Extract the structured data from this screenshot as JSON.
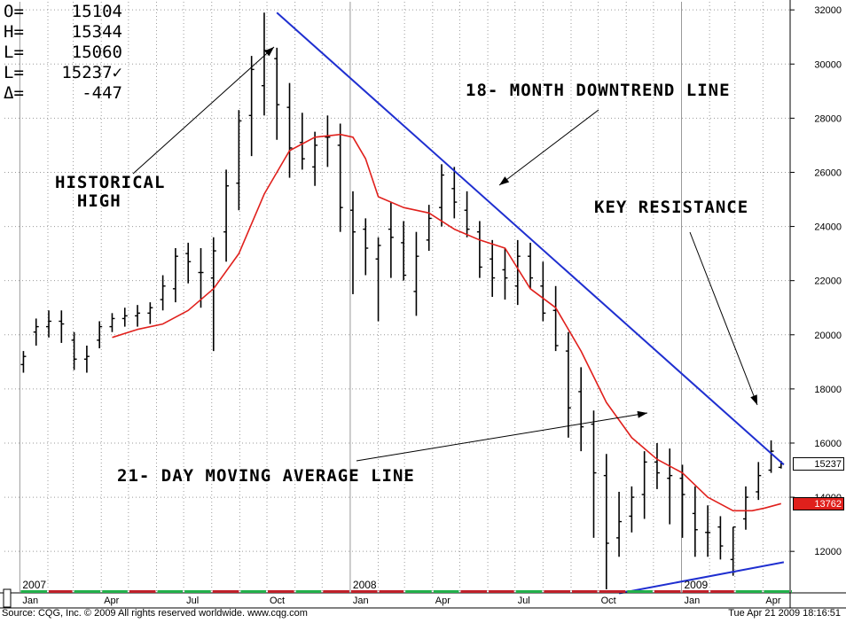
{
  "ohlc": [
    {
      "key": "O=",
      "value": "15104"
    },
    {
      "key": "H=",
      "value": "15344"
    },
    {
      "key": "L=",
      "value": "15060"
    },
    {
      "key": "L=",
      "value": "15237✓"
    },
    {
      "key": "Δ=",
      "value": "-447"
    }
  ],
  "annotations": {
    "historical_high": "HISTORICAL\n  HIGH",
    "downtrend": "18- MONTH DOWNTREND LINE",
    "key_resistance": "KEY RESISTANCE",
    "moving_average": "21- DAY MOVING AVERAGE LINE"
  },
  "footer": {
    "source": "Source: CQG, Inc. © 2009 All rights reserved worldwide. www.cqg.com",
    "timestamp": "Tue Apr 21 2009 18:16:51"
  },
  "price_tags": {
    "last": {
      "label": "15237",
      "value": 15237,
      "color": "#000000",
      "bg": "#ffffff"
    },
    "ma": {
      "label": "13762",
      "value": 13762,
      "color": "#ffffff",
      "bg": "#e0201c"
    }
  },
  "colors": {
    "bars": "#000000",
    "moving_average": "#e0201c",
    "trendline": "#1f2fd0",
    "grid": "#9a9a9a",
    "month_up": "#22b04b",
    "month_down": "#c0202a"
  },
  "chart_data": {
    "type": "line",
    "ylim": [
      10500,
      32300
    ],
    "y_ticks": [
      12000,
      14000,
      16000,
      18000,
      20000,
      22000,
      24000,
      26000,
      28000,
      30000,
      32000
    ],
    "x_month_labels": [
      "Jan",
      "Apr",
      "Jul",
      "Oct",
      "Jan",
      "Apr",
      "Jul",
      "Oct",
      "Jan",
      "Apr"
    ],
    "x_year_labels": [
      "2007",
      "2008",
      "2009"
    ],
    "grid": true,
    "series": [
      {
        "kind": "ohlc",
        "x": [
          "2007-01-05",
          "2007-01-19",
          "2007-02-02",
          "2007-02-16",
          "2007-03-02",
          "2007-03-16",
          "2007-03-30",
          "2007-04-13",
          "2007-04-27",
          "2007-05-11",
          "2007-05-25",
          "2007-06-08",
          "2007-06-22",
          "2007-07-06",
          "2007-07-20",
          "2007-08-03",
          "2007-08-17",
          "2007-08-31",
          "2007-09-14",
          "2007-09-28",
          "2007-10-12",
          "2007-10-26",
          "2007-11-09",
          "2007-11-23",
          "2007-12-07",
          "2007-12-21",
          "2008-01-04",
          "2008-01-18",
          "2008-02-01",
          "2008-02-15",
          "2008-02-29",
          "2008-03-14",
          "2008-03-28",
          "2008-04-11",
          "2008-04-25",
          "2008-05-09",
          "2008-05-23",
          "2008-06-06",
          "2008-06-20",
          "2008-07-04",
          "2008-07-18",
          "2008-08-01",
          "2008-08-15",
          "2008-08-29",
          "2008-09-12",
          "2008-09-26",
          "2008-10-10",
          "2008-10-24",
          "2008-11-07",
          "2008-11-21",
          "2008-12-05",
          "2008-12-19",
          "2009-01-02",
          "2009-01-16",
          "2009-01-30",
          "2009-02-13",
          "2009-02-27",
          "2009-03-13",
          "2009-03-27",
          "2009-04-10",
          "2009-04-21"
        ],
        "open": [
          18900,
          20100,
          20300,
          20500,
          19800,
          19100,
          19800,
          20300,
          20600,
          20700,
          20800,
          21300,
          21700,
          23000,
          22300,
          22100,
          23800,
          25600,
          28100,
          29200,
          30200,
          28400,
          27100,
          26200,
          27300,
          27000,
          24600,
          23900,
          22800,
          23900,
          23400,
          21600,
          23500,
          24700,
          25400,
          24600,
          23800,
          22800,
          22400,
          21800,
          22900,
          21800,
          20900,
          19400,
          17900,
          16700,
          14800,
          12500,
          13300,
          14100,
          15300,
          14700,
          14700,
          13400,
          12700,
          12900,
          11700,
          13200,
          14200,
          15000,
          15104
        ],
        "high": [
          19400,
          20600,
          20900,
          20900,
          20100,
          19600,
          20500,
          20800,
          21000,
          21100,
          21200,
          22200,
          23200,
          23400,
          23200,
          23600,
          26100,
          28300,
          30300,
          31900,
          30600,
          29300,
          28200,
          27500,
          28100,
          27800,
          25300,
          24300,
          23600,
          24900,
          24200,
          23800,
          24800,
          26300,
          26200,
          25300,
          24200,
          23500,
          23200,
          23500,
          23400,
          22700,
          21800,
          20100,
          18800,
          17200,
          15600,
          14200,
          14400,
          15700,
          16000,
          15800,
          15200,
          14400,
          13700,
          13300,
          12900,
          14400,
          15300,
          16100,
          15344
        ],
        "low": [
          18600,
          19600,
          19900,
          19700,
          18700,
          18600,
          19500,
          20100,
          20300,
          20300,
          20400,
          20900,
          21200,
          21900,
          21000,
          19400,
          22700,
          24600,
          26600,
          28100,
          27200,
          25800,
          26100,
          25500,
          26200,
          23800,
          21500,
          22200,
          20500,
          22100,
          22000,
          20700,
          23100,
          24000,
          24300,
          23600,
          22100,
          21400,
          21300,
          21100,
          21700,
          20500,
          19400,
          16200,
          15700,
          12500,
          10600,
          11800,
          12700,
          13200,
          14300,
          13000,
          12500,
          11800,
          11800,
          11700,
          11100,
          12800,
          13900,
          14900,
          15060
        ],
        "close": [
          19200,
          20300,
          20500,
          20400,
          19100,
          19200,
          20300,
          20600,
          20700,
          20800,
          21000,
          21800,
          22900,
          22700,
          22300,
          23100,
          25500,
          27900,
          29800,
          30500,
          28500,
          26900,
          26500,
          27000,
          27300,
          24700,
          23800,
          23200,
          23300,
          23600,
          22200,
          22900,
          24300,
          25900,
          24900,
          23900,
          22500,
          22100,
          22100,
          22900,
          22100,
          20800,
          19600,
          17300,
          16600,
          14900,
          12300,
          13100,
          14000,
          15300,
          14900,
          14800,
          14100,
          12800,
          12700,
          12200,
          12900,
          14000,
          14800,
          15700,
          15237
        ]
      },
      {
        "kind": "line",
        "name": "",
        "x": [
          "2007-04-13",
          "2007-05-11",
          "2007-06-08",
          "2007-07-06",
          "2007-08-03",
          "2007-08-31",
          "2007-09-28",
          "2007-10-26",
          "2007-11-23",
          "2007-12-21",
          "2008-01-04",
          "2008-01-18",
          "2008-02-01",
          "2008-02-29",
          "2008-03-28",
          "2008-04-25",
          "2008-05-23",
          "2008-06-20",
          "2008-07-18",
          "2008-08-15",
          "2008-09-12",
          "2008-10-10",
          "2008-11-07",
          "2008-12-05",
          "2009-01-02",
          "2009-01-30",
          "2009-02-27",
          "2009-03-20",
          "2009-04-03",
          "2009-04-21"
        ],
        "values": [
          19900,
          20200,
          20400,
          20900,
          21700,
          23000,
          25200,
          26800,
          27300,
          27400,
          27300,
          26500,
          25100,
          24700,
          24500,
          23900,
          23500,
          23200,
          21700,
          21000,
          19400,
          17500,
          16200,
          15400,
          14900,
          14000,
          13500,
          13500,
          13600,
          13762
        ]
      },
      {
        "kind": "line",
        "name": "",
        "x": [
          "2007-10-12",
          "2009-04-24"
        ],
        "values": [
          31900,
          15200
        ]
      },
      {
        "kind": "line",
        "name": "",
        "x": [
          "2008-10-24",
          "2009-04-24"
        ],
        "values": [
          10450,
          11600
        ]
      }
    ]
  }
}
